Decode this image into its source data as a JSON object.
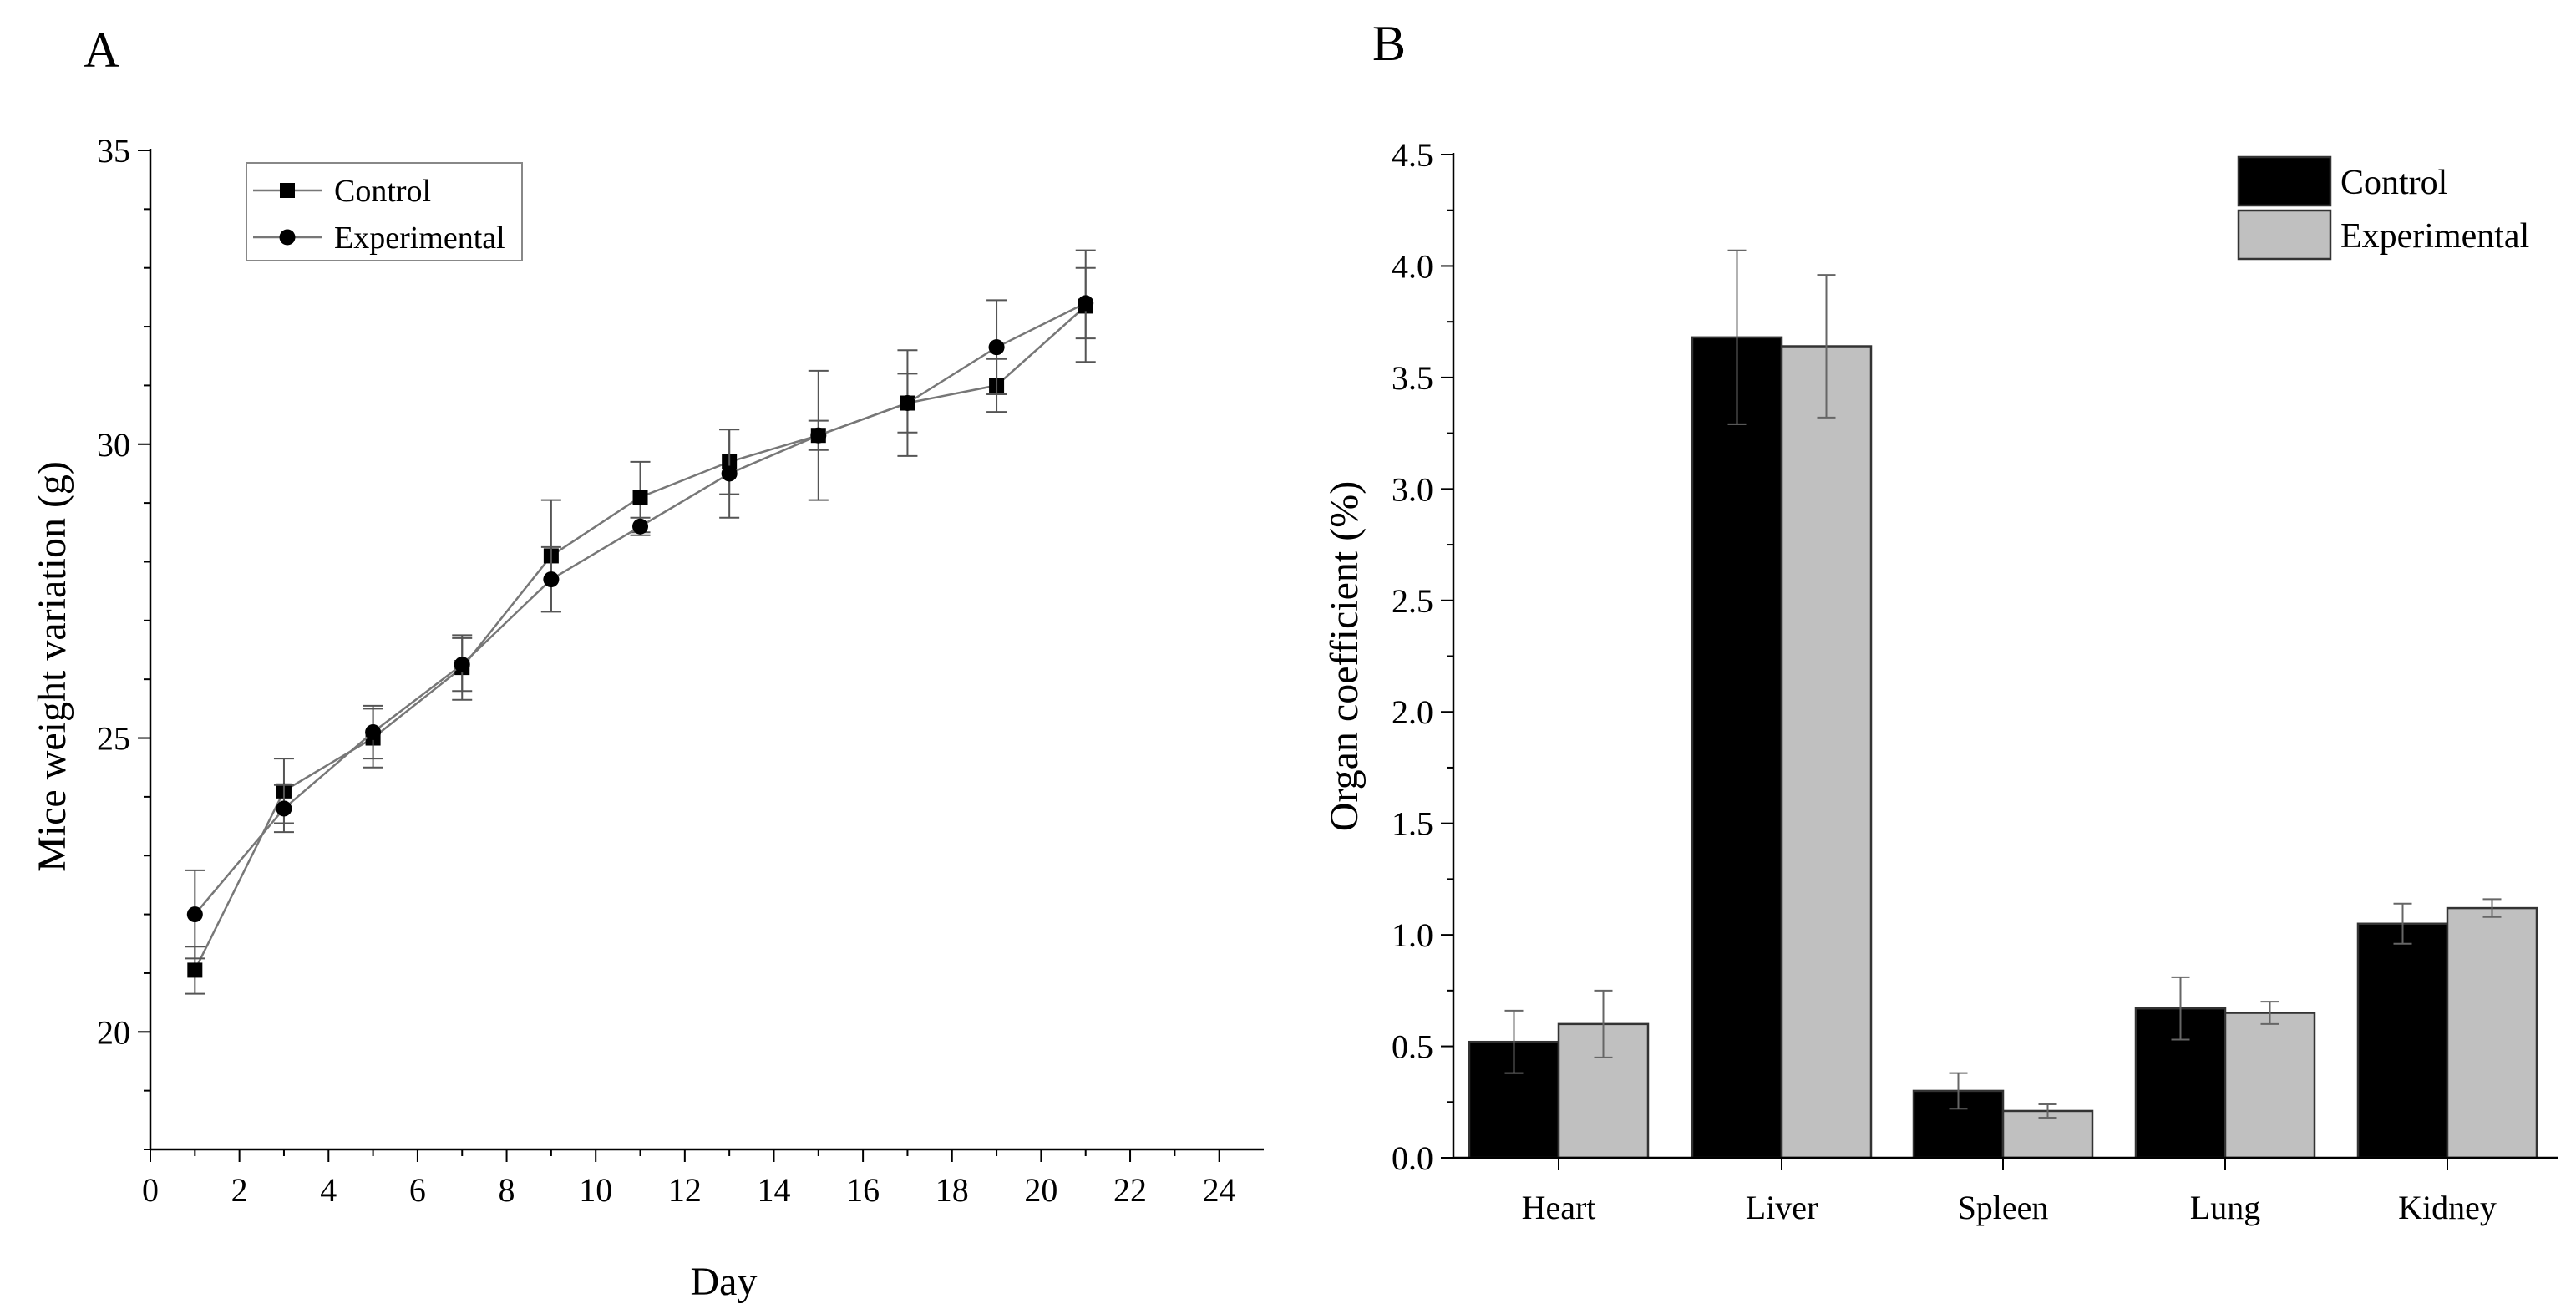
{
  "chart_data": [
    {
      "panel": "A",
      "type": "line",
      "title": "",
      "xlabel": "Day",
      "ylabel": "Mice weight variation (g)",
      "xlim": [
        0,
        25
      ],
      "ylim": [
        18,
        35
      ],
      "xticks": [
        0,
        2,
        4,
        6,
        8,
        10,
        12,
        14,
        16,
        18,
        20,
        22,
        24
      ],
      "yticks": [
        20,
        25,
        30,
        35
      ],
      "grid": false,
      "legend_position": "top-left",
      "x": [
        1,
        3,
        5,
        7,
        9,
        11,
        13,
        15,
        17,
        19,
        21
      ],
      "series": [
        {
          "name": "Control",
          "marker": "square",
          "values": [
            21.05,
            24.1,
            25.0,
            26.2,
            28.1,
            29.1,
            29.7,
            30.15,
            30.7,
            31.0,
            32.35
          ],
          "errors": [
            0.4,
            0.55,
            0.5,
            0.55,
            0.95,
            0.6,
            0.55,
            1.1,
            0.5,
            0.45,
            0.95
          ]
        },
        {
          "name": "Experimental",
          "marker": "circle",
          "values": [
            22.0,
            23.8,
            25.1,
            26.25,
            27.7,
            28.6,
            29.5,
            30.15,
            30.7,
            31.65,
            32.4
          ],
          "errors": [
            0.75,
            0.4,
            0.45,
            0.45,
            0.55,
            0.15,
            0.75,
            0.25,
            0.9,
            0.8,
            0.6
          ]
        }
      ]
    },
    {
      "panel": "B",
      "type": "bar",
      "title": "",
      "xlabel": "",
      "ylabel": "Organ coefficient  (%)",
      "ylim": [
        0,
        4.5
      ],
      "yticks": [
        "0.0",
        "0.5",
        "1.0",
        "1.5",
        "2.0",
        "2.5",
        "3.0",
        "3.5",
        "4.0",
        "4.5"
      ],
      "grid": false,
      "legend_position": "top-right",
      "categories": [
        "Heart",
        "Liver",
        "Spleen",
        "Lung",
        "Kidney"
      ],
      "series": [
        {
          "name": "Control",
          "color": "#000000",
          "values": [
            0.52,
            3.68,
            0.3,
            0.67,
            1.05
          ],
          "errors": [
            0.14,
            0.39,
            0.08,
            0.14,
            0.09
          ]
        },
        {
          "name": "Experimental",
          "color": "#c0c0c0",
          "values": [
            0.6,
            3.64,
            0.21,
            0.65,
            1.12
          ],
          "errors": [
            0.15,
            0.32,
            0.03,
            0.05,
            0.04
          ]
        }
      ]
    }
  ]
}
